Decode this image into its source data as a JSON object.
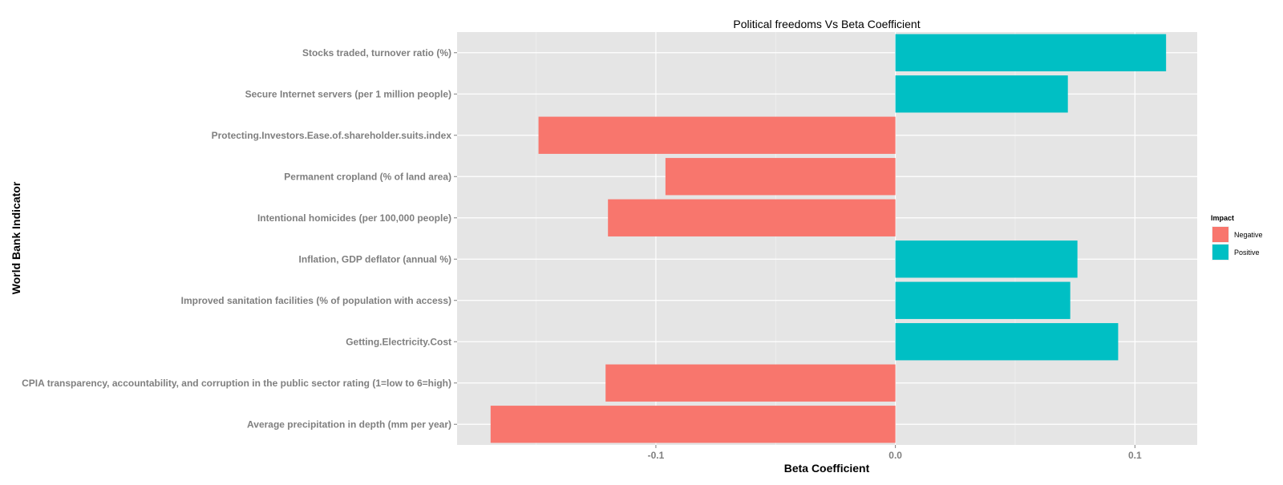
{
  "chart_data": {
    "type": "bar",
    "orientation": "horizontal",
    "title": "Political freedoms Vs Beta Coefficient",
    "xlabel": "Beta Coefficient",
    "ylabel": "World Bank Indicator",
    "xlim": [
      -0.183,
      0.126
    ],
    "xticks": [
      -0.1,
      0.0,
      0.1
    ],
    "xtick_labels": [
      "-0.1",
      "0.0",
      "0.1"
    ],
    "grid": true,
    "legend_position": "right",
    "legend_title": "Impact",
    "legend": [
      {
        "label": "Negative",
        "color": "#F8766D"
      },
      {
        "label": "Positive",
        "color": "#00BFC4"
      }
    ],
    "categories": [
      "Stocks traded, turnover ratio (%)",
      "Secure Internet servers (per 1 million people)",
      "Protecting.Investors.Ease.of.shareholder.suits.index",
      "Permanent cropland (% of land area)",
      "Intentional homicides (per 100,000 people)",
      "Inflation, GDP deflator (annual %)",
      "Improved sanitation facilities (% of population with access)",
      "Getting.Electricity.Cost",
      "CPIA transparency, accountability, and corruption in the public sector rating (1=low to 6=high)",
      "Average precipitation in depth (mm per year)"
    ],
    "values": [
      0.113,
      0.072,
      -0.149,
      -0.096,
      -0.12,
      0.076,
      0.073,
      0.093,
      -0.121,
      -0.169
    ],
    "impact": [
      "Positive",
      "Positive",
      "Negative",
      "Negative",
      "Negative",
      "Positive",
      "Positive",
      "Positive",
      "Negative",
      "Negative"
    ]
  }
}
